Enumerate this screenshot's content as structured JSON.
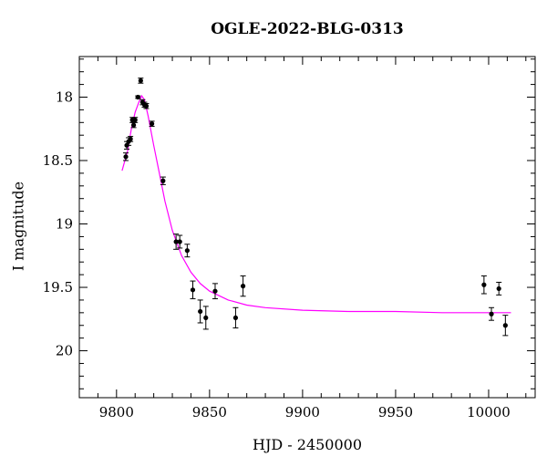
{
  "chart_data": {
    "type": "scatter",
    "title": "OGLE-2022-BLG-0313",
    "xlabel": "HJD - 2450000",
    "ylabel": "I magnitude",
    "xlim": [
      9780,
      10025
    ],
    "ylim": [
      20.37,
      17.68
    ],
    "y_inverted": true,
    "xticks": [
      9800,
      9850,
      9900,
      9950,
      10000
    ],
    "yticks": [
      18,
      18.5,
      19,
      19.5,
      20
    ],
    "grid": false,
    "colors": {
      "points": "#000000",
      "model": "#ff00ff"
    },
    "series": [
      {
        "type": "errorbar-points",
        "x": [
          9805,
          9805.5,
          9806.5,
          9807.5,
          9808.5,
          9809.2,
          9810,
          9811.5,
          9813,
          9814,
          9815,
          9816,
          9819,
          9825,
          9832,
          9834,
          9838,
          9841,
          9845,
          9848,
          9853,
          9864,
          9868,
          9997.5,
          10001.5,
          10005.5,
          10009
        ],
        "y": [
          18.47,
          18.38,
          18.35,
          18.33,
          18.18,
          18.22,
          18.18,
          18.0,
          17.87,
          18.04,
          18.06,
          18.07,
          18.21,
          18.66,
          19.14,
          19.14,
          19.21,
          19.52,
          19.69,
          19.74,
          19.53,
          19.74,
          19.49,
          19.48,
          19.71,
          19.51,
          19.8
        ],
        "yerr": [
          0.03,
          0.03,
          0.03,
          0.02,
          0.02,
          0.02,
          0.02,
          0.01,
          0.02,
          0.02,
          0.02,
          0.02,
          0.02,
          0.03,
          0.06,
          0.05,
          0.05,
          0.07,
          0.09,
          0.09,
          0.06,
          0.08,
          0.08,
          0.07,
          0.05,
          0.05,
          0.08
        ]
      },
      {
        "type": "line",
        "x": [
          9803,
          9806,
          9808,
          9810,
          9812,
          9813.5,
          9815,
          9817,
          9820,
          9823,
          9826,
          9830,
          9835,
          9840,
          9845,
          9850,
          9860,
          9870,
          9880,
          9900,
          9925,
          9950,
          9975,
          10000,
          10012
        ],
        "y": [
          18.58,
          18.42,
          18.25,
          18.12,
          18.04,
          17.99,
          18.02,
          18.15,
          18.38,
          18.6,
          18.82,
          19.05,
          19.25,
          19.38,
          19.47,
          19.53,
          19.6,
          19.64,
          19.66,
          19.68,
          19.69,
          19.69,
          19.7,
          19.7,
          19.7
        ]
      }
    ]
  }
}
